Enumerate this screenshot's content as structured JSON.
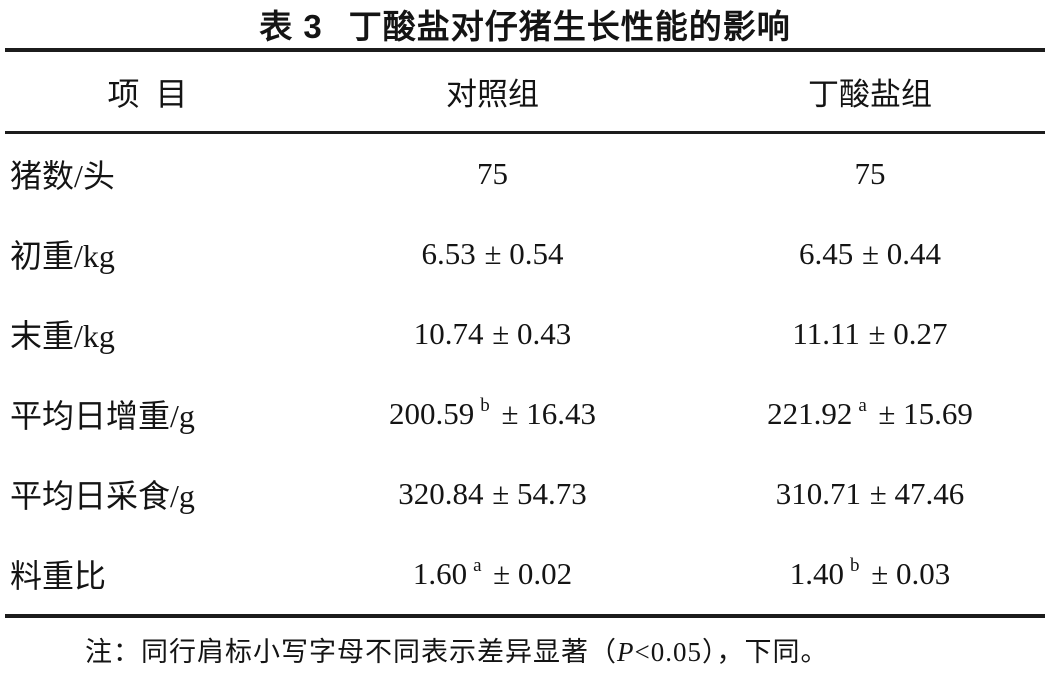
{
  "table": {
    "title_label": "表 3",
    "title_text": "丁酸盐对仔猪生长性能的影响",
    "columns": [
      "项目",
      "对照组",
      "丁酸盐组"
    ],
    "rows": [
      {
        "item": "猪数/头",
        "control": {
          "main": "75",
          "sup": "",
          "sd": ""
        },
        "butyrate": {
          "main": "75",
          "sup": "",
          "sd": ""
        }
      },
      {
        "item": "初重/kg",
        "control": {
          "main": "6.53",
          "sup": "",
          "sd": "± 0.54"
        },
        "butyrate": {
          "main": "6.45",
          "sup": "",
          "sd": "± 0.44"
        }
      },
      {
        "item": "末重/kg",
        "control": {
          "main": "10.74",
          "sup": "",
          "sd": "± 0.43"
        },
        "butyrate": {
          "main": "11.11",
          "sup": "",
          "sd": "± 0.27"
        }
      },
      {
        "item": "平均日增重/g",
        "control": {
          "main": "200.59",
          "sup": "b",
          "sd": "± 16.43"
        },
        "butyrate": {
          "main": "221.92",
          "sup": "a",
          "sd": "± 15.69"
        }
      },
      {
        "item": "平均日采食/g",
        "control": {
          "main": "320.84",
          "sup": "",
          "sd": "± 54.73"
        },
        "butyrate": {
          "main": "310.71",
          "sup": "",
          "sd": "± 47.46"
        }
      },
      {
        "item": "料重比",
        "control": {
          "main": "1.60",
          "sup": "a",
          "sd": "± 0.02"
        },
        "butyrate": {
          "main": "1.40",
          "sup": "b",
          "sd": "± 0.03"
        }
      }
    ],
    "note": {
      "prefix": "注：同行肩标小写字母不同表示差异显著（",
      "p_symbol": "P",
      "suffix": "<0.05），下同。"
    }
  }
}
